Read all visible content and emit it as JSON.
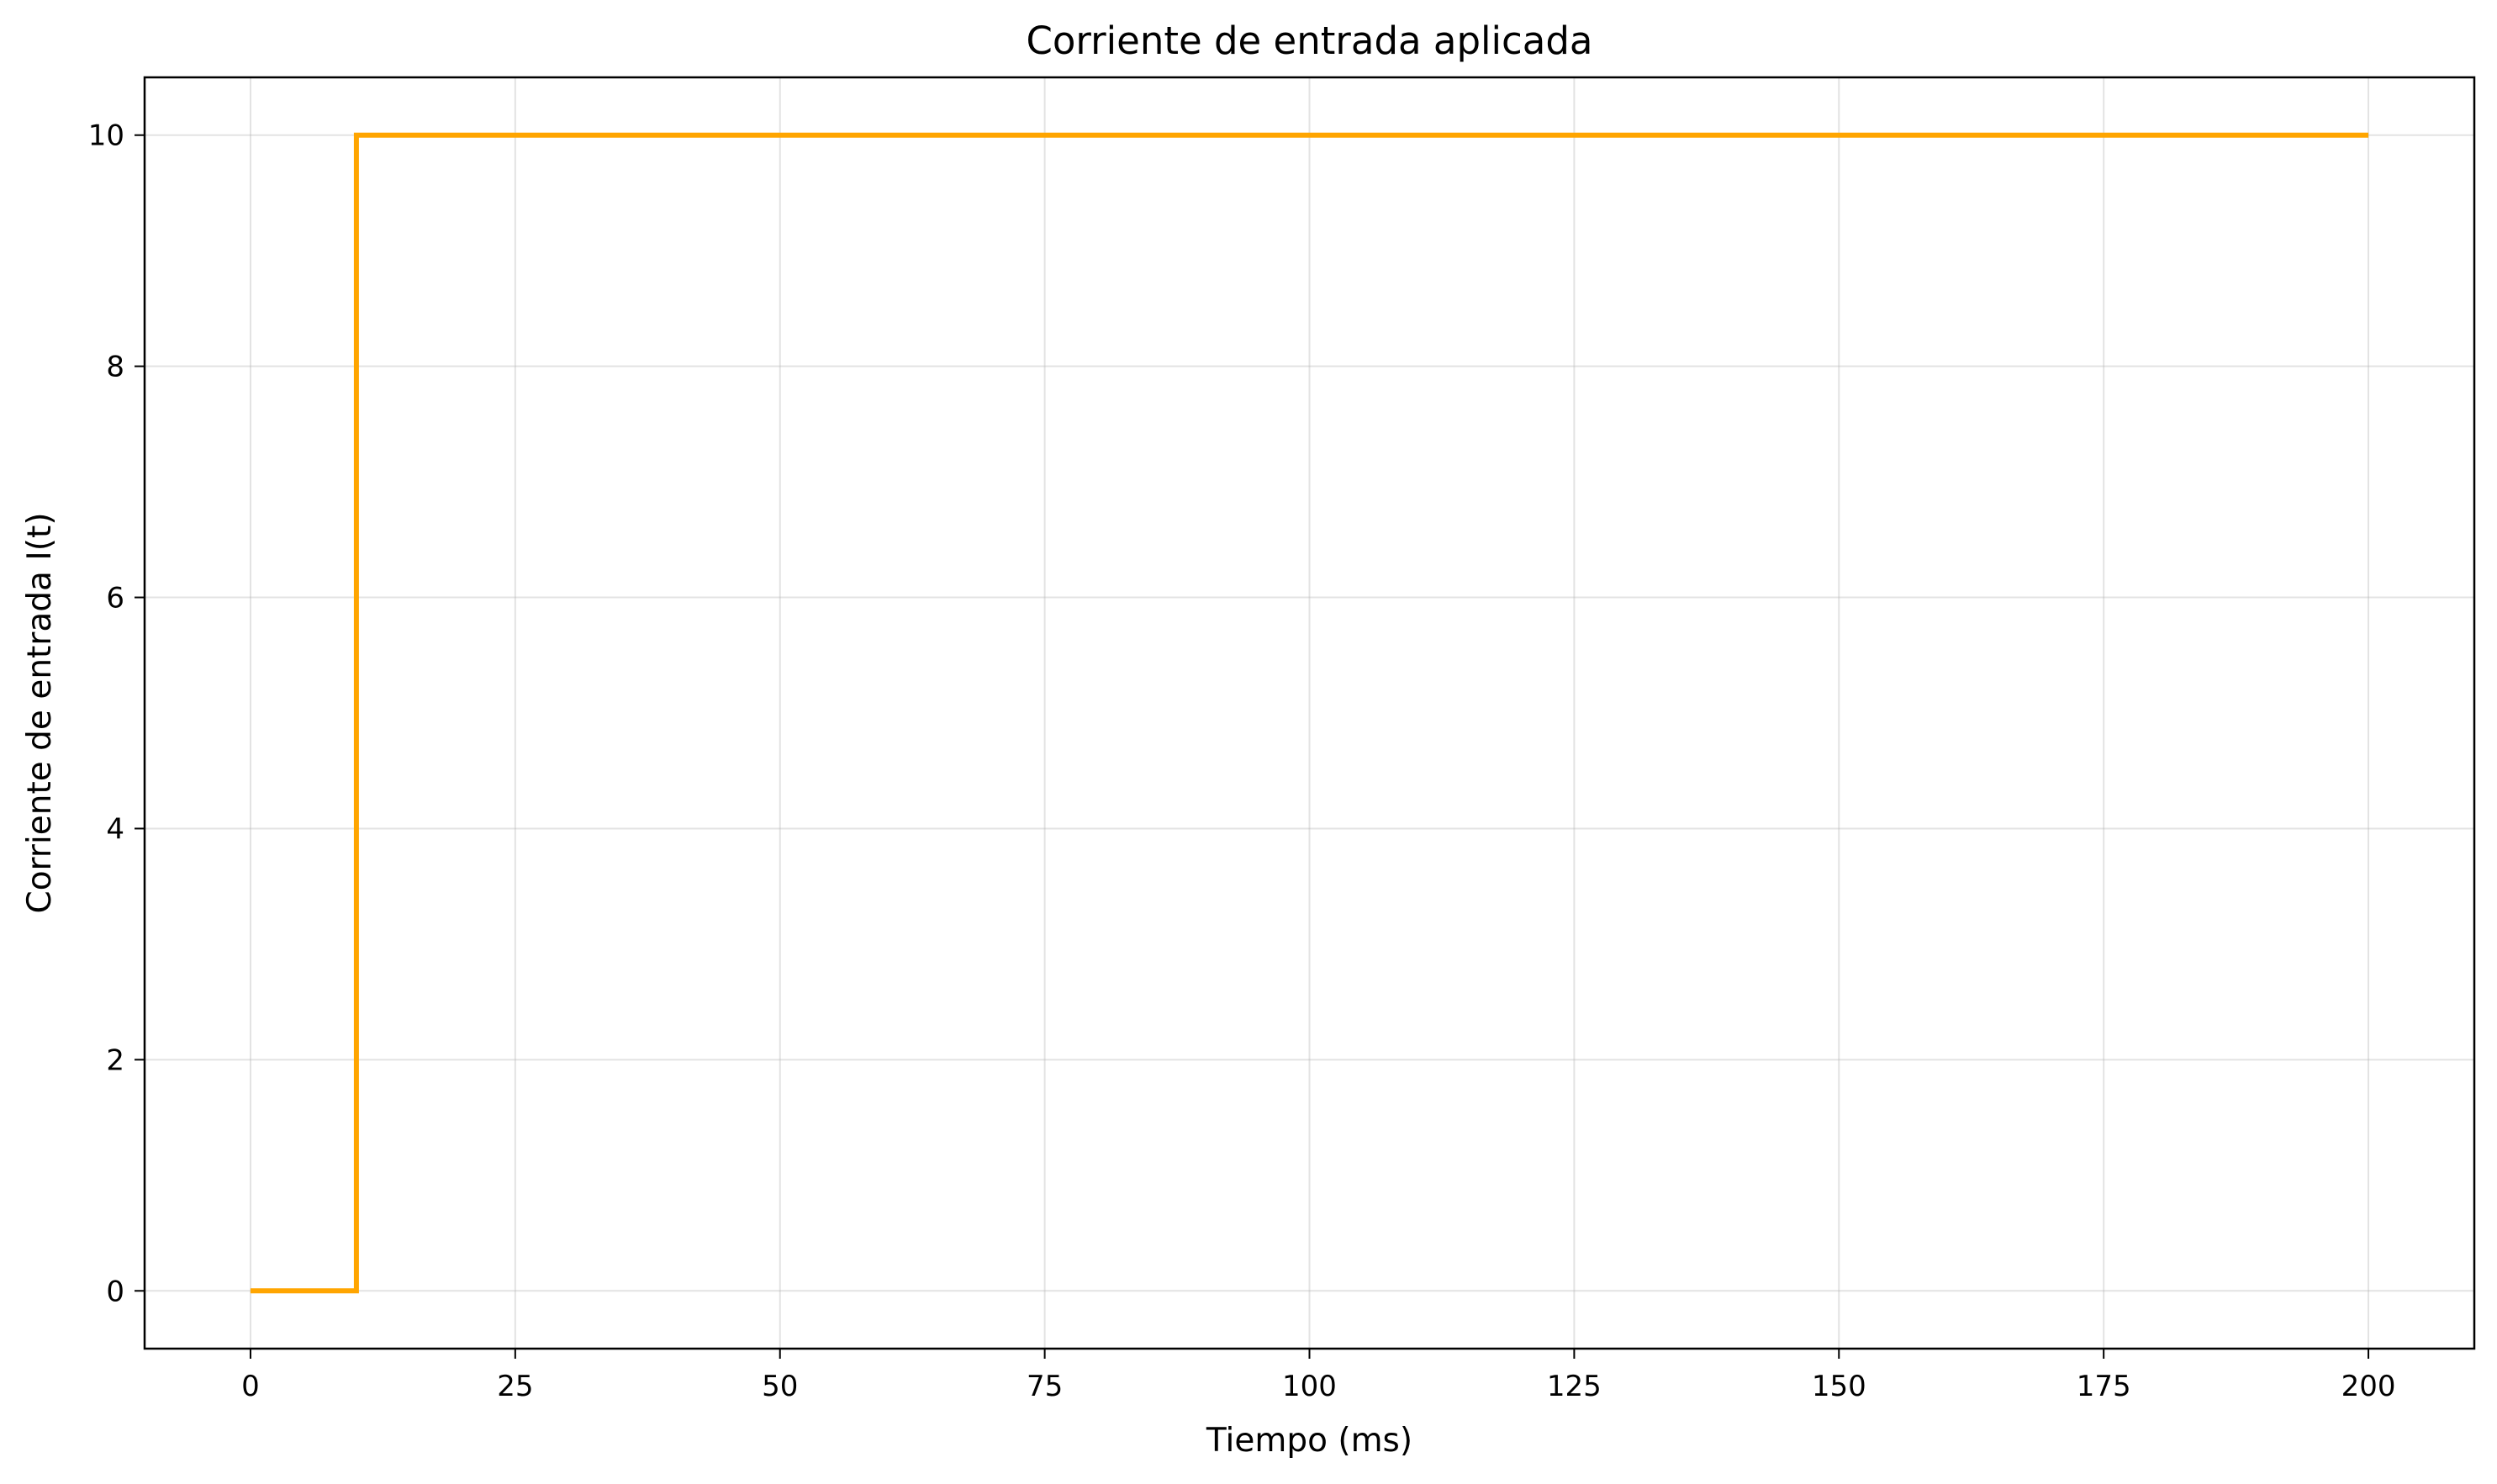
{
  "chart_data": {
    "type": "line",
    "title": "Corriente de entrada aplicada",
    "xlabel": "Tiempo (ms)",
    "ylabel": "Corriente de entrada I(t)",
    "xlim": [
      -10,
      210
    ],
    "ylim": [
      -0.5,
      10.5
    ],
    "xticks": [
      0,
      25,
      50,
      75,
      100,
      125,
      150,
      175,
      200
    ],
    "xtick_labels": [
      "0",
      "25",
      "50",
      "75",
      "100",
      "125",
      "150",
      "175",
      "200"
    ],
    "yticks": [
      0,
      2,
      4,
      6,
      8,
      10
    ],
    "ytick_labels": [
      "0",
      "2",
      "4",
      "6",
      "8",
      "10"
    ],
    "grid": true,
    "series": [
      {
        "color": "#ffa500",
        "x": [
          0,
          10,
          10,
          200
        ],
        "y": [
          0,
          0,
          10,
          10
        ]
      }
    ]
  }
}
